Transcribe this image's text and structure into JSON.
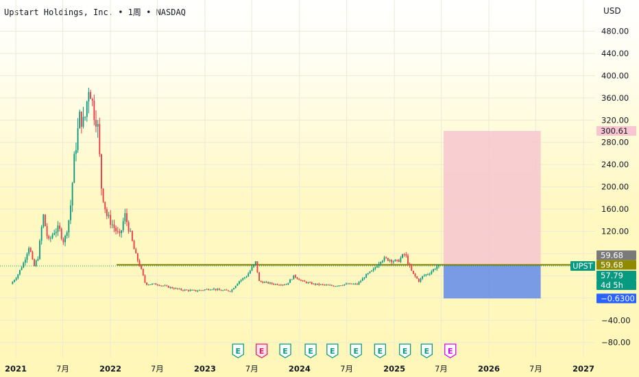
{
  "header": {
    "symbol_name": "Upstart Holdings, Inc.",
    "interval": "1周",
    "exchange": "NASDAQ",
    "currency": "USD"
  },
  "chart_data": {
    "type": "candlestick",
    "title": "Upstart Holdings, Inc. • 1周 • NASDAQ",
    "ylabel": "USD",
    "ylim": [
      -100,
      510
    ],
    "y_ticks": [
      480,
      440,
      400,
      360,
      320,
      280,
      240,
      200,
      160,
      120,
      -40,
      -80
    ],
    "y_tick_labels": [
      "480.00",
      "440.00",
      "400.00",
      "360.00",
      "320.00",
      "280.00",
      "240.00",
      "200.00",
      "160.00",
      "120.00",
      "−40.00",
      "−80.00"
    ],
    "x_range": [
      "2020-11-01",
      "2027-02-15"
    ],
    "x_ticks": [
      {
        "date": "2021-01-01",
        "label": "2021",
        "bold": true
      },
      {
        "date": "2021-07-01",
        "label": "7月",
        "bold": false
      },
      {
        "date": "2022-01-01",
        "label": "2022",
        "bold": true
      },
      {
        "date": "2022-07-01",
        "label": "7月",
        "bold": false
      },
      {
        "date": "2023-01-01",
        "label": "2023",
        "bold": true
      },
      {
        "date": "2023-07-01",
        "label": "7月",
        "bold": false
      },
      {
        "date": "2024-01-01",
        "label": "2024",
        "bold": true
      },
      {
        "date": "2024-07-01",
        "label": "7月",
        "bold": false
      },
      {
        "date": "2025-01-01",
        "label": "2025",
        "bold": true
      },
      {
        "date": "2025-07-01",
        "label": "7月",
        "bold": false
      },
      {
        "date": "2026-01-01",
        "label": "2026",
        "bold": true
      },
      {
        "date": "2026-07-01",
        "label": "7月",
        "bold": false
      },
      {
        "date": "2027-01-01",
        "label": "2027",
        "bold": true
      }
    ],
    "price_path": [
      [
        "2020-12-16",
        25
      ],
      [
        "2021-01-10",
        40
      ],
      [
        "2021-02-05",
        65
      ],
      [
        "2021-02-25",
        95
      ],
      [
        "2021-03-15",
        55
      ],
      [
        "2021-04-01",
        75
      ],
      [
        "2021-04-20",
        150
      ],
      [
        "2021-05-10",
        100
      ],
      [
        "2021-06-01",
        120
      ],
      [
        "2021-06-20",
        125
      ],
      [
        "2021-07-10",
        100
      ],
      [
        "2021-08-01",
        150
      ],
      [
        "2021-08-20",
        260
      ],
      [
        "2021-09-10",
        330
      ],
      [
        "2021-09-25",
        310
      ],
      [
        "2021-10-15",
        390
      ],
      [
        "2021-10-30",
        340
      ],
      [
        "2021-11-15",
        320
      ],
      [
        "2021-12-01",
        200
      ],
      [
        "2021-12-20",
        150
      ],
      [
        "2022-01-15",
        130
      ],
      [
        "2022-02-10",
        110
      ],
      [
        "2022-03-01",
        150
      ],
      [
        "2022-03-20",
        120
      ],
      [
        "2022-04-10",
        80
      ],
      [
        "2022-05-01",
        55
      ],
      [
        "2022-05-20",
        25
      ],
      [
        "2022-07-01",
        25
      ],
      [
        "2022-08-15",
        20
      ],
      [
        "2022-10-01",
        15
      ],
      [
        "2022-12-01",
        13
      ],
      [
        "2023-02-01",
        17
      ],
      [
        "2023-03-01",
        14
      ],
      [
        "2023-04-15",
        13
      ],
      [
        "2023-05-15",
        30
      ],
      [
        "2023-06-15",
        40
      ],
      [
        "2023-07-20",
        65
      ],
      [
        "2023-08-01",
        30
      ],
      [
        "2023-10-01",
        25
      ],
      [
        "2023-11-15",
        25
      ],
      [
        "2023-12-15",
        40
      ],
      [
        "2024-01-15",
        30
      ],
      [
        "2024-03-01",
        25
      ],
      [
        "2024-05-15",
        22
      ],
      [
        "2024-07-01",
        25
      ],
      [
        "2024-08-15",
        25
      ],
      [
        "2024-09-15",
        40
      ],
      [
        "2024-10-15",
        50
      ],
      [
        "2024-11-15",
        70
      ],
      [
        "2024-12-15",
        70
      ],
      [
        "2025-01-15",
        65
      ],
      [
        "2025-02-15",
        80
      ],
      [
        "2025-03-01",
        60
      ],
      [
        "2025-03-15",
        45
      ],
      [
        "2025-04-10",
        30
      ],
      [
        "2025-04-25",
        40
      ],
      [
        "2025-05-20",
        45
      ],
      [
        "2025-06-20",
        57.79
      ]
    ],
    "horizontal_line": {
      "value": 59.68,
      "from": "2022-01-25",
      "color": "#808000"
    },
    "last_price_line": {
      "value": 57.79,
      "color": "#089981"
    },
    "position_tool": {
      "start": "2025-07-10",
      "end": "2026-07-20",
      "entry": 59.68,
      "target": 300.61,
      "stop": -0.63,
      "profit_color": "#f7c6d0",
      "loss_color": "#6a8fe8"
    },
    "price_labels": [
      {
        "text": "300.61",
        "value": 300.61,
        "bg": "#f7c6d0",
        "fg": "#131722"
      },
      {
        "text": "59.68",
        "value": 59.68,
        "bg": "#7a7a7a",
        "fg": "#ffffff",
        "offset": -14
      },
      {
        "text": "59.68",
        "value": 59.68,
        "bg": "#8f8a00",
        "fg": "#ffffff",
        "offset": 0
      },
      {
        "text": "57.79",
        "value": 57.79,
        "bg": "#089981",
        "fg": "#ffffff",
        "offset": 14
      },
      {
        "text": "4d 5h",
        "value": 57.79,
        "bg": "#089981",
        "fg": "#ffffff",
        "offset": 28
      },
      {
        "text": "−0.6300",
        "value": -0.63,
        "bg": "#2962ff",
        "fg": "#ffffff",
        "offset": 0
      }
    ],
    "symbol_tag": {
      "text": "UPST",
      "bg": "#089981",
      "fg": "#ffffff"
    },
    "earnings_markers": [
      {
        "date": "2023-05-09",
        "label": "E",
        "color": "#089981"
      },
      {
        "date": "2023-08-08",
        "label": "E",
        "color": "#e91e63",
        "filled": true
      },
      {
        "date": "2023-11-07",
        "label": "E",
        "color": "#089981"
      },
      {
        "date": "2024-02-13",
        "label": "E",
        "color": "#089981"
      },
      {
        "date": "2024-05-07",
        "label": "E",
        "color": "#089981"
      },
      {
        "date": "2024-08-06",
        "label": "E",
        "color": "#089981"
      },
      {
        "date": "2024-11-07",
        "label": "E",
        "color": "#089981"
      },
      {
        "date": "2025-02-11",
        "label": "E",
        "color": "#089981"
      },
      {
        "date": "2025-05-06",
        "label": "E",
        "color": "#089981"
      },
      {
        "date": "2025-08-05",
        "label": "E",
        "color": "#d500f9"
      }
    ],
    "colors": {
      "up": "#089981",
      "down": "#f23645",
      "grid": "#ece9d8"
    }
  }
}
